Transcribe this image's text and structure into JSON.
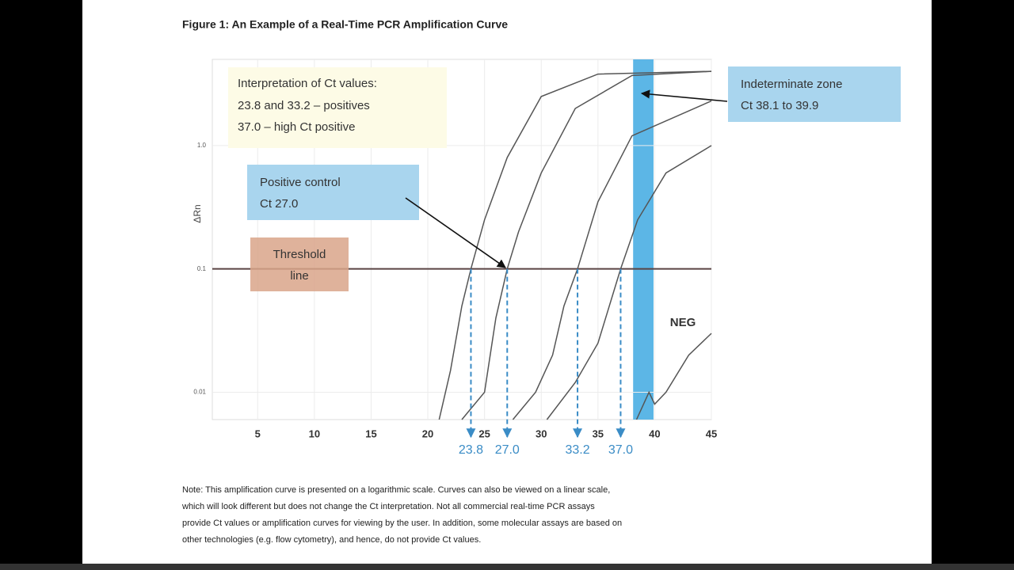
{
  "figure_title": "Figure 1:  An Example of a Real-Time PCR Amplification Curve",
  "chart_data": {
    "type": "line",
    "y_label": "ΔRn",
    "xlim": [
      1,
      45
    ],
    "ylim": [
      0.006,
      5
    ],
    "log_y": true,
    "grid": true,
    "xticks": [
      5,
      10,
      15,
      20,
      25,
      30,
      35,
      40,
      45
    ],
    "yticks": [
      0.01,
      0.1,
      {
        "value": 1,
        "label": "1.0"
      }
    ],
    "threshold": 0.1,
    "threshold_color": "#5a4444",
    "indeterminate_zone": [
      38.1,
      39.9
    ],
    "zone_color": "#5cb6e6",
    "ct_color": "#3a8cc6",
    "ct_markers": [
      {
        "value": 23.8,
        "label": "23.8"
      },
      {
        "value": 27,
        "label": "27.0"
      },
      {
        "value": 33.2,
        "label": "33.2"
      },
      {
        "value": 37,
        "label": "37.0"
      }
    ],
    "series": [
      {
        "color": "#555555",
        "x": [
          21,
          22,
          23,
          23.8,
          25,
          27,
          30,
          35,
          45
        ],
        "values": [
          0.006,
          0.015,
          0.05,
          0.1,
          0.25,
          0.8,
          2.5,
          3.8,
          4.0
        ]
      },
      {
        "color": "#555555",
        "x": [
          23,
          25,
          26,
          27,
          28,
          30,
          33,
          38,
          45
        ],
        "values": [
          0.006,
          0.01,
          0.04,
          0.1,
          0.2,
          0.6,
          2,
          3.7,
          4
        ]
      },
      {
        "color": "#555555",
        "x": [
          27.5,
          29.5,
          31,
          32,
          33.2,
          35,
          38,
          45
        ],
        "values": [
          0.006,
          0.01,
          0.02,
          0.05,
          0.1,
          0.35,
          1.2,
          2.3
        ]
      },
      {
        "color": "#555555",
        "x": [
          30.5,
          33,
          35,
          36,
          37,
          38.5,
          41,
          45
        ],
        "values": [
          0.006,
          0.012,
          0.025,
          0.05,
          0.1,
          0.25,
          0.6,
          1.0
        ]
      },
      {
        "color": "#555555",
        "x": [
          38.4,
          39.5,
          40,
          41,
          43,
          45
        ],
        "values": [
          0.006,
          0.01,
          0.008,
          0.01,
          0.02,
          0.03
        ]
      }
    ],
    "annotations": {
      "interpretation": [
        "Interpretation of Ct values:",
        "23.8 and 33.2 – positives",
        "37.0 – high Ct positive"
      ],
      "positive_control": [
        "Positive control",
        "Ct 27.0"
      ],
      "threshold": [
        "Threshold",
        "line"
      ],
      "indeterminate": [
        "Indeterminate zone",
        "Ct 38.1 to 39.9"
      ],
      "neg": "NEG"
    }
  },
  "note": [
    "Note: This amplification curve is presented on a logarithmic scale. Curves can also be viewed on a linear scale,",
    "which will look different but does not change the Ct interpretation. Not all commercial real-time PCR assays",
    "provide Ct values or amplification curves for viewing by the user.  In addition, some molecular assays are based on",
    "other technologies (e.g. flow cytometry), and hence, do not provide Ct values."
  ]
}
